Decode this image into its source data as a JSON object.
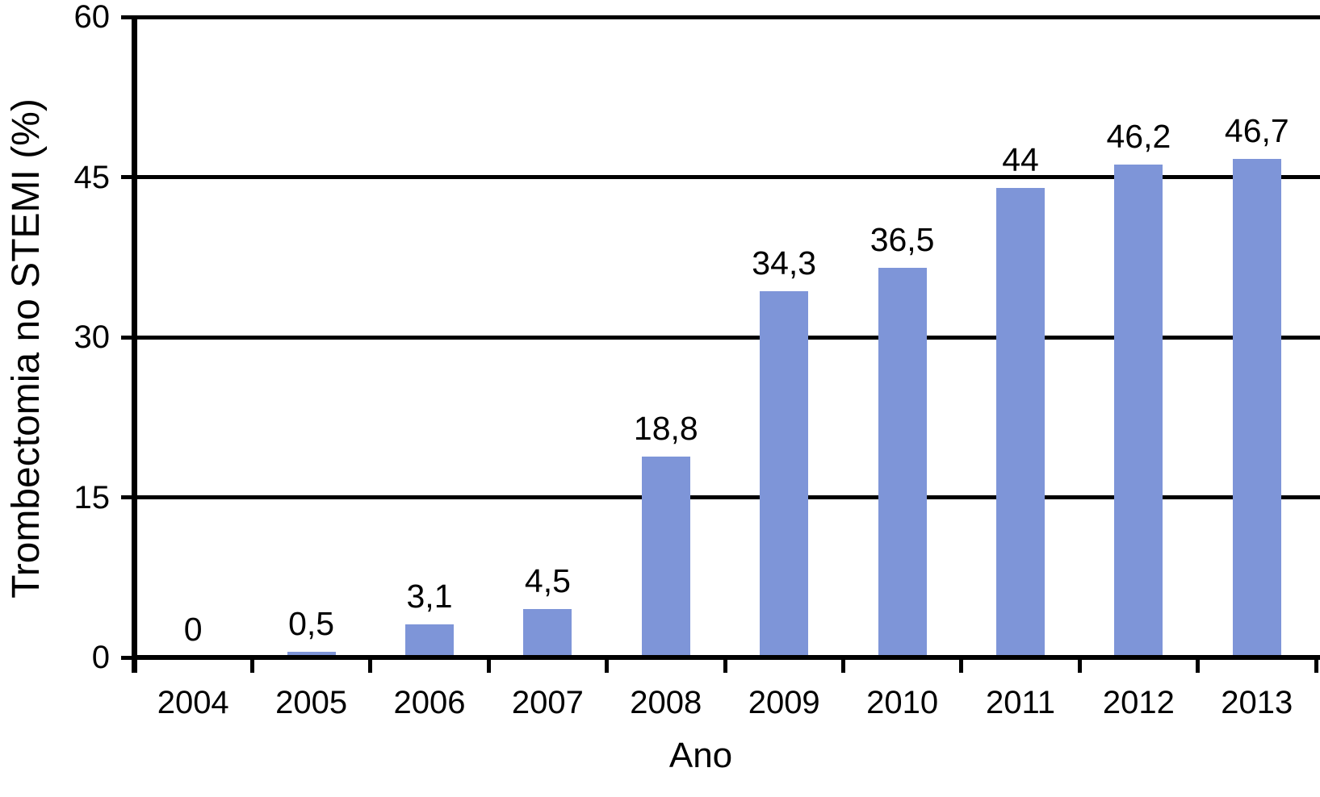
{
  "chart_data": {
    "type": "bar",
    "title": "",
    "xlabel": "Ano",
    "ylabel": "Trombectomia no STEMI (%)",
    "categories": [
      "2004",
      "2005",
      "2006",
      "2007",
      "2008",
      "2009",
      "2010",
      "2011",
      "2012",
      "2013"
    ],
    "values": [
      0,
      0.5,
      3.1,
      4.5,
      18.8,
      34.3,
      36.5,
      44,
      46.2,
      46.7
    ],
    "value_labels": [
      "0",
      "0,5",
      "3,1",
      "4,5",
      "18,8",
      "34,3",
      "36,5",
      "44",
      "46,2",
      "46,7"
    ],
    "ylim": [
      0,
      60
    ],
    "yticks": [
      0,
      15,
      30,
      45,
      60
    ],
    "ytick_labels": [
      "0",
      "15",
      "30",
      "45",
      "60"
    ],
    "grid": "horizontal-black",
    "legend": "none",
    "bar_color": "#7e95d8",
    "axis_color": "#000000",
    "background": "#ffffff"
  }
}
